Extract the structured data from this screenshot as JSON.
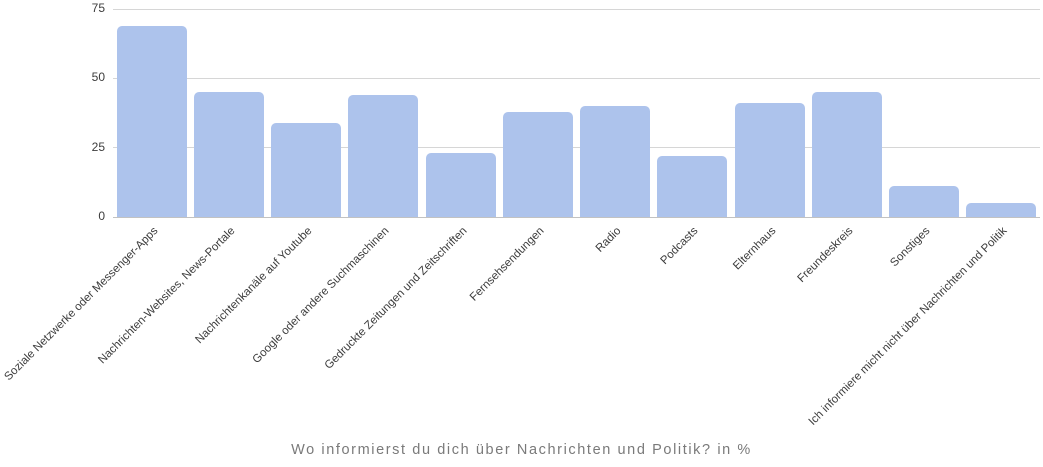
{
  "chart_data": {
    "type": "bar",
    "title": "Wo informierst du dich über Nachrichten und Politik? in %",
    "categories": [
      "Soziale Netzwerke oder Messenger-Apps",
      "Nachrichten-Websites, News-Portale",
      "Nachrichtenkanäle auf Youtube",
      "Google oder andere Suchmaschinen",
      "Gedruckte Zeitungen und Zeitschriften",
      "Fernsehsendungen",
      "Radio",
      "Podcasts",
      "Elternhaus",
      "Freundeskreis",
      "Sonstiges",
      "Ich informiere micht nicht über Nachrichten und Politik"
    ],
    "values": [
      69,
      45,
      34,
      44,
      23,
      38,
      40,
      22,
      41,
      45,
      11,
      5
    ],
    "xlabel": "",
    "ylabel": "",
    "ylim": [
      0,
      75
    ],
    "yticks": [
      0,
      25,
      50,
      75
    ],
    "grid": true,
    "legend": "none",
    "colors": {
      "bar_fill": "#adc3ec",
      "gridline": "#d6d6d6",
      "axis_line": "#c2c2c2",
      "tick_label": "#3c3c3c",
      "category_label": "#3c3c3c",
      "title": "#7a7a7a"
    }
  }
}
